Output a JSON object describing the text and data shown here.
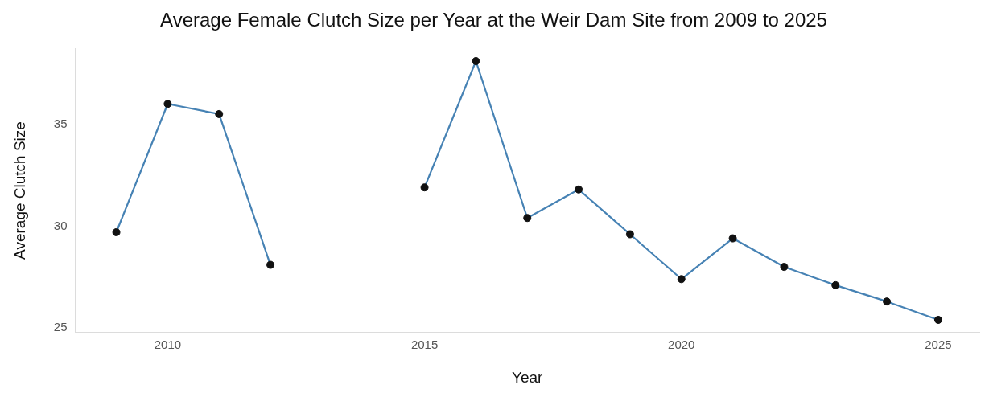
{
  "chart_data": {
    "type": "line",
    "title": "Average Female Clutch Size per Year at the Weir Dam Site from 2009 to 2025",
    "xlabel": "Year",
    "ylabel": "Average Clutch Size",
    "x": [
      2009,
      2010,
      2011,
      2012,
      2013,
      2014,
      2015,
      2016,
      2017,
      2018,
      2019,
      2020,
      2021,
      2022,
      2023,
      2024,
      2025
    ],
    "series": [
      {
        "color": "#4682b4",
        "values": [
          29.7,
          36.0,
          35.5,
          28.1,
          null,
          null,
          31.9,
          38.1,
          30.4,
          31.8,
          29.6,
          27.4,
          29.4,
          28.0,
          27.1,
          26.3,
          25.4
        ]
      }
    ],
    "xlim": [
      2008.2,
      2025.8
    ],
    "xticks": [
      2010,
      2015,
      2020,
      2025
    ],
    "ylim": [
      24.8,
      38.7
    ],
    "yticks": [
      25,
      30,
      35
    ],
    "grid": false,
    "legend": false,
    "marker": "circle",
    "line_style": "solid"
  }
}
